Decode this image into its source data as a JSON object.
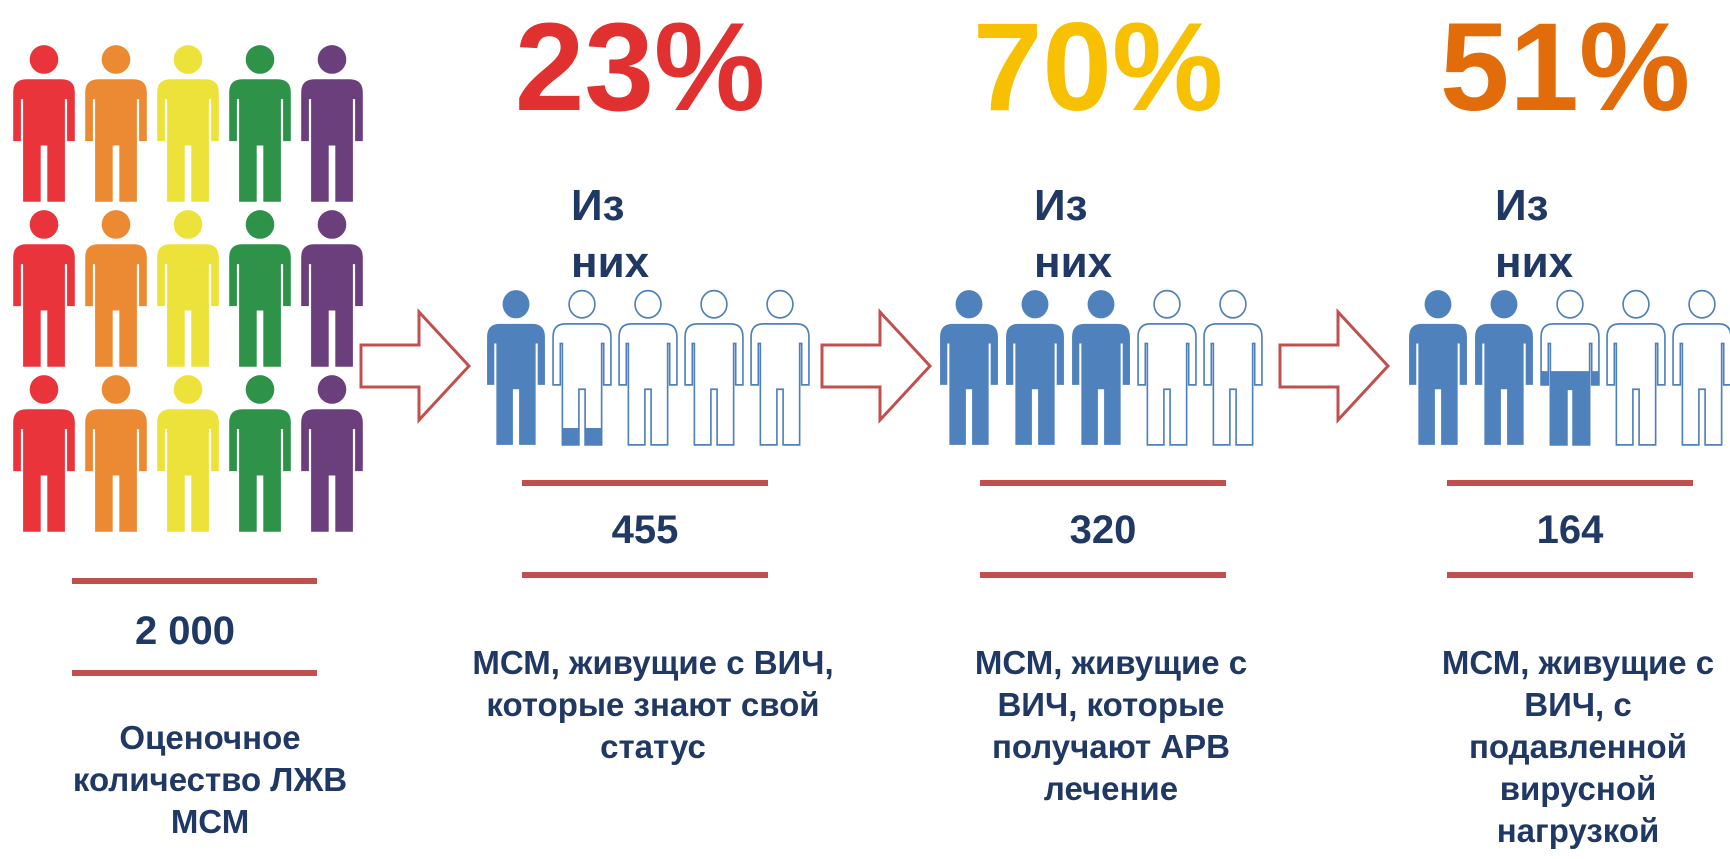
{
  "total": {
    "count": "2 000",
    "label": [
      "Оценочное",
      "количество ЛЖВ",
      "МСМ"
    ]
  },
  "stages": [
    {
      "percent": "23%",
      "intro": [
        "Из",
        "них"
      ],
      "count": "455",
      "label": [
        "МСМ, живущие с ВИЧ,",
        "которые знают свой",
        "статус"
      ]
    },
    {
      "percent": "70%",
      "intro": [
        "Из",
        "них"
      ],
      "count": "320",
      "label": [
        "МСМ, живущие с",
        "ВИЧ, которые",
        "получают АРВ",
        "лечение"
      ]
    },
    {
      "percent": "51%",
      "intro": [
        "Из",
        "них"
      ],
      "count": "164",
      "label": [
        "МСМ, живущие с",
        "ВИЧ, с",
        "подавленной",
        "вирусной",
        "нагрузкой"
      ]
    }
  ]
}
